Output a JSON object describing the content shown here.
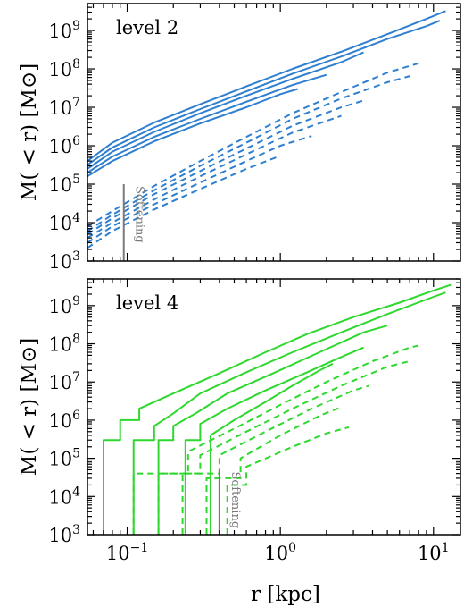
{
  "chart_data": [
    {
      "type": "line",
      "panel_label": "level 2",
      "ylabel": "M( < r) [M⊙]",
      "xlabel": "",
      "x_scale": "log",
      "y_scale": "log",
      "xlim": [
        0.055,
        15
      ],
      "ylim": [
        1000,
        5000000000
      ],
      "x_ticks": [
        0.1,
        1,
        10
      ],
      "x_tick_labels": [],
      "y_ticks": [
        1000,
        10000,
        100000,
        1000000,
        10000000,
        100000000,
        1000000000
      ],
      "y_tick_labels": [
        "10^3",
        "10^4",
        "10^5",
        "10^6",
        "10^7",
        "10^8",
        "10^9"
      ],
      "softening": {
        "x": 0.095,
        "y_top": 100000,
        "label": "Softening"
      },
      "color": "#2f7fd0",
      "series": [
        {
          "style": "solid",
          "points": [
            [
              0.055,
              400000
            ],
            [
              0.08,
              1200000
            ],
            [
              0.15,
              4000000
            ],
            [
              0.3,
              12000000
            ],
            [
              0.6,
              35000000
            ],
            [
              1.2,
              100000000
            ],
            [
              2.5,
              280000000
            ],
            [
              5,
              800000000
            ],
            [
              9,
              2000000000
            ],
            [
              12,
              3200000000
            ]
          ]
        },
        {
          "style": "solid",
          "points": [
            [
              0.055,
              320000
            ],
            [
              0.08,
              900000
            ],
            [
              0.15,
              3000000
            ],
            [
              0.3,
              9000000
            ],
            [
              0.6,
              26000000
            ],
            [
              1.2,
              75000000
            ],
            [
              2.5,
              210000000
            ],
            [
              5,
              600000000
            ],
            [
              9,
              1300000000
            ],
            [
              11,
              1800000000
            ]
          ]
        },
        {
          "style": "solid",
          "points": [
            [
              0.055,
              250000
            ],
            [
              0.08,
              700000
            ],
            [
              0.15,
              2300000
            ],
            [
              0.3,
              7000000
            ],
            [
              0.6,
              20000000
            ],
            [
              1.2,
              55000000
            ],
            [
              2.5,
              150000000
            ],
            [
              3.5,
              270000000
            ]
          ]
        },
        {
          "style": "solid",
          "points": [
            [
              0.055,
              200000
            ],
            [
              0.08,
              520000
            ],
            [
              0.15,
              1700000
            ],
            [
              0.3,
              5000000
            ],
            [
              0.6,
              14000000
            ],
            [
              1.2,
              38000000
            ],
            [
              2,
              70000000
            ]
          ]
        },
        {
          "style": "solid",
          "points": [
            [
              0.055,
              160000
            ],
            [
              0.08,
              400000
            ],
            [
              0.15,
              1300000
            ],
            [
              0.3,
              3800000
            ],
            [
              0.6,
              10000000
            ],
            [
              1,
              22000000
            ],
            [
              1.3,
              30000000
            ]
          ]
        },
        {
          "style": "dashed",
          "points": [
            [
              0.055,
              8000
            ],
            [
              0.08,
              20000
            ],
            [
              0.15,
              90000
            ],
            [
              0.3,
              400000
            ],
            [
              0.6,
              1700000
            ],
            [
              1.2,
              7000000
            ],
            [
              2.5,
              25000000
            ],
            [
              5,
              80000000
            ],
            [
              8,
              140000000
            ]
          ]
        },
        {
          "style": "dashed",
          "points": [
            [
              0.055,
              6000
            ],
            [
              0.08,
              16000
            ],
            [
              0.15,
              70000
            ],
            [
              0.3,
              300000
            ],
            [
              0.6,
              1200000
            ],
            [
              1.2,
              5000000
            ],
            [
              2.5,
              17000000
            ],
            [
              5,
              45000000
            ],
            [
              7,
              65000000
            ]
          ]
        },
        {
          "style": "dashed",
          "points": [
            [
              0.055,
              5000
            ],
            [
              0.08,
              13000
            ],
            [
              0.15,
              55000
            ],
            [
              0.3,
              220000
            ],
            [
              0.6,
              850000
            ],
            [
              1.2,
              3300000
            ],
            [
              2.5,
              10000000
            ],
            [
              3.5,
              15000000
            ]
          ]
        },
        {
          "style": "dashed",
          "points": [
            [
              0.055,
              4000
            ],
            [
              0.08,
              10000
            ],
            [
              0.15,
              40000
            ],
            [
              0.3,
              160000
            ],
            [
              0.6,
              600000
            ],
            [
              1.2,
              2200000
            ],
            [
              2.5,
              6000000
            ]
          ]
        },
        {
          "style": "dashed",
          "points": [
            [
              0.055,
              3000
            ],
            [
              0.08,
              8000
            ],
            [
              0.15,
              30000
            ],
            [
              0.3,
              110000
            ],
            [
              0.6,
              400000
            ],
            [
              1,
              1000000
            ],
            [
              1.6,
              1800000
            ]
          ]
        },
        {
          "style": "dashed",
          "points": [
            [
              0.055,
              2200
            ],
            [
              0.08,
              6000
            ],
            [
              0.15,
              22000
            ],
            [
              0.3,
              75000
            ],
            [
              0.6,
              250000
            ],
            [
              1,
              550000
            ]
          ]
        }
      ]
    },
    {
      "type": "line",
      "panel_label": "level 4",
      "ylabel": "M( < r) [M⊙]",
      "xlabel": "r [kpc]",
      "x_scale": "log",
      "y_scale": "log",
      "xlim": [
        0.055,
        15
      ],
      "ylim": [
        1000,
        5000000000
      ],
      "x_ticks": [
        0.1,
        1,
        10
      ],
      "x_tick_labels": [
        "10^-1",
        "10^0",
        "10^1"
      ],
      "y_ticks": [
        1000,
        10000,
        100000,
        1000000,
        10000000,
        100000000,
        1000000000
      ],
      "y_tick_labels": [
        "10^3",
        "10^4",
        "10^5",
        "10^6",
        "10^7",
        "10^8",
        "10^9"
      ],
      "softening": {
        "x": 0.4,
        "y_top": 50000,
        "label": "Softening"
      },
      "color": "#2ed82e",
      "series": [
        {
          "style": "solid",
          "points": [
            [
              0.07,
              1000
            ],
            [
              0.07,
              300000
            ],
            [
              0.09,
              300000
            ],
            [
              0.09,
              1000000
            ],
            [
              0.12,
              1000000
            ],
            [
              0.12,
              2000000
            ],
            [
              0.2,
              5000000
            ],
            [
              0.4,
              17000000
            ],
            [
              0.8,
              60000000
            ],
            [
              1.5,
              180000000
            ],
            [
              3,
              500000000
            ],
            [
              6,
              1200000000
            ],
            [
              10,
              2500000000
            ],
            [
              13,
              3500000000
            ]
          ]
        },
        {
          "style": "solid",
          "points": [
            [
              0.11,
              1000
            ],
            [
              0.11,
              300000
            ],
            [
              0.15,
              300000
            ],
            [
              0.15,
              700000
            ],
            [
              0.2,
              1500000
            ],
            [
              0.3,
              5000000
            ],
            [
              0.6,
              18000000
            ],
            [
              1.2,
              60000000
            ],
            [
              2.5,
              200000000
            ],
            [
              5,
              600000000
            ],
            [
              10,
              1700000000
            ],
            [
              12,
              2200000000
            ]
          ]
        },
        {
          "style": "solid",
          "points": [
            [
              0.16,
              1000
            ],
            [
              0.16,
              300000
            ],
            [
              0.2,
              300000
            ],
            [
              0.2,
              700000
            ],
            [
              0.28,
              1500000
            ],
            [
              0.45,
              5000000
            ],
            [
              0.9,
              17000000
            ],
            [
              1.8,
              60000000
            ],
            [
              3.5,
              200000000
            ],
            [
              5,
              300000000
            ]
          ]
        },
        {
          "style": "solid",
          "points": [
            [
              0.24,
              1000
            ],
            [
              0.24,
              300000
            ],
            [
              0.3,
              300000
            ],
            [
              0.3,
              800000
            ],
            [
              0.45,
              2000000
            ],
            [
              0.8,
              6000000
            ],
            [
              1.5,
              18000000
            ],
            [
              2.5,
              45000000
            ],
            [
              3.5,
              80000000
            ]
          ]
        },
        {
          "style": "solid",
          "points": [
            [
              0.35,
              1000
            ],
            [
              0.35,
              400000
            ],
            [
              0.5,
              1000000
            ],
            [
              0.8,
              3000000
            ],
            [
              1.2,
              8000000
            ],
            [
              1.8,
              20000000
            ],
            [
              2.2,
              30000000
            ]
          ]
        },
        {
          "style": "dashed",
          "points": [
            [
              0.11,
              1000
            ],
            [
              0.11,
              40000
            ],
            [
              0.25,
              40000
            ],
            [
              0.25,
              150000
            ],
            [
              0.5,
              600000
            ],
            [
              1,
              2500000
            ],
            [
              2,
              10000000
            ],
            [
              4,
              35000000
            ],
            [
              7,
              80000000
            ],
            [
              8,
              90000000
            ]
          ]
        },
        {
          "style": "dashed",
          "points": [
            [
              0.16,
              1000
            ],
            [
              0.16,
              40000
            ],
            [
              0.3,
              40000
            ],
            [
              0.3,
              120000
            ],
            [
              0.6,
              500000
            ],
            [
              1.2,
              2000000
            ],
            [
              2.5,
              8000000
            ],
            [
              5,
              25000000
            ],
            [
              7,
              35000000
            ]
          ]
        },
        {
          "style": "dashed",
          "points": [
            [
              0.23,
              1000
            ],
            [
              0.23,
              40000
            ],
            [
              0.4,
              40000
            ],
            [
              0.4,
              120000
            ],
            [
              0.8,
              500000
            ],
            [
              1.6,
              2000000
            ],
            [
              3,
              6000000
            ],
            [
              3.8,
              8000000
            ]
          ]
        },
        {
          "style": "dashed",
          "points": [
            [
              0.33,
              1000
            ],
            [
              0.33,
              30000
            ],
            [
              0.55,
              30000
            ],
            [
              0.55,
              100000
            ],
            [
              1,
              400000
            ],
            [
              1.8,
              1300000
            ],
            [
              2.5,
              2200000
            ]
          ]
        },
        {
          "style": "dashed",
          "points": [
            [
              0.45,
              1000
            ],
            [
              0.45,
              20000
            ],
            [
              0.6,
              20000
            ],
            [
              0.6,
              60000
            ],
            [
              1.2,
              200000
            ],
            [
              2,
              450000
            ],
            [
              2.8,
              650000
            ]
          ]
        }
      ]
    }
  ]
}
